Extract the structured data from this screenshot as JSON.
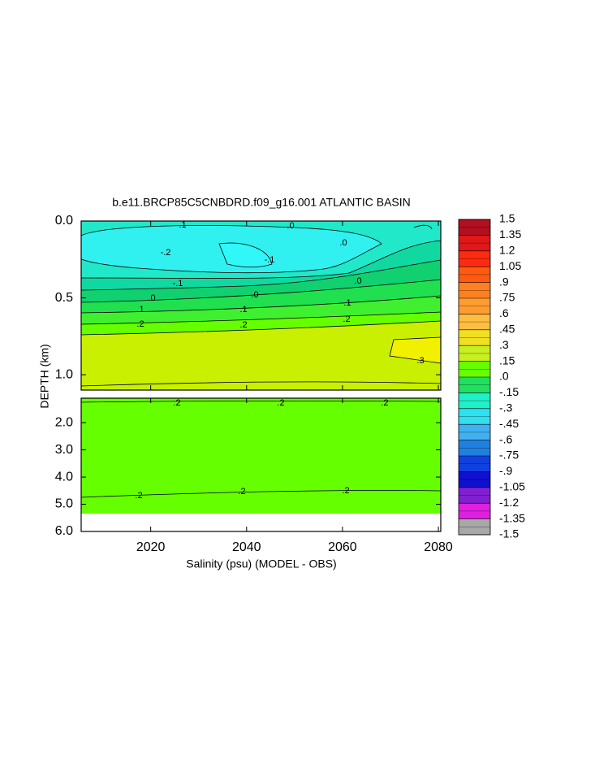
{
  "chart_data": {
    "type": "contour",
    "title": "b.e11.BRCP85C5CNBDRD.f09_g16.001 ATLANTIC BASIN",
    "xlabel": "Salinity (psu) (MODEL - OBS)",
    "ylabel": "DEPTH (km)",
    "xlim": [
      2005.5,
      2080.5
    ],
    "xticks": [
      2020,
      2040,
      2060,
      2080
    ],
    "panels": [
      {
        "ylim": [
          0,
          1.1
        ],
        "yticks": [
          {
            "value": 0,
            "label": "0.0"
          },
          {
            "value": 0.5,
            "label": "0.5"
          },
          {
            "value": 1,
            "label": "1.0"
          }
        ]
      },
      {
        "ylim": [
          1.1,
          6
        ],
        "yticks": [
          {
            "value": 2,
            "label": "2.0"
          },
          {
            "value": 3,
            "label": "3.0"
          },
          {
            "value": 4,
            "label": "4.0"
          },
          {
            "value": 5,
            "label": "5.0"
          },
          {
            "value": 6,
            "label": "6.0"
          }
        ]
      }
    ],
    "contour_labels": [
      ".1",
      ".0",
      "-.2",
      "-.1",
      ".0",
      ".0",
      "-.1",
      ".0",
      ".0",
      ".1",
      ".1",
      ".1",
      ".2",
      ".2",
      ".2",
      ".3",
      ".2",
      ".2",
      ".2",
      ".2",
      ".2",
      ".2"
    ],
    "colorbar": {
      "ticks": [
        {
          "value": 1.5,
          "label": "1.5"
        },
        {
          "value": 1.35,
          "label": "1.35"
        },
        {
          "value": 1.2,
          "label": "1.2"
        },
        {
          "value": 1.05,
          "label": "1.05"
        },
        {
          "value": 0.9,
          "label": ".9"
        },
        {
          "value": 0.75,
          "label": ".75"
        },
        {
          "value": 0.6,
          "label": ".6"
        },
        {
          "value": 0.45,
          "label": ".45"
        },
        {
          "value": 0.3,
          "label": ".3"
        },
        {
          "value": 0.15,
          "label": ".15"
        },
        {
          "value": 0,
          "label": ".0"
        },
        {
          "value": -0.15,
          "label": "-.15"
        },
        {
          "value": -0.3,
          "label": "-.3"
        },
        {
          "value": -0.45,
          "label": "-.45"
        },
        {
          "value": -0.6,
          "label": "-.6"
        },
        {
          "value": -0.75,
          "label": "-.75"
        },
        {
          "value": -0.9,
          "label": "-.9"
        },
        {
          "value": -1.05,
          "label": "-1.05"
        },
        {
          "value": -1.2,
          "label": "-1.2"
        },
        {
          "value": -1.35,
          "label": "-1.35"
        },
        {
          "value": -1.5,
          "label": "-1.5"
        }
      ],
      "colors": [
        "#b01020",
        "#e01818",
        "#ff2a10",
        "#ff5a10",
        "#ff8020",
        "#ff9c30",
        "#ffbe40",
        "#f0e020",
        "#c8f020",
        "#66ff00",
        "#20e060",
        "#20f0c8",
        "#30e0f0",
        "#40b0f0",
        "#2080e0",
        "#1040e0",
        "#1010d0",
        "#8020d0",
        "#e020e0",
        "#a8a8a8"
      ]
    }
  }
}
